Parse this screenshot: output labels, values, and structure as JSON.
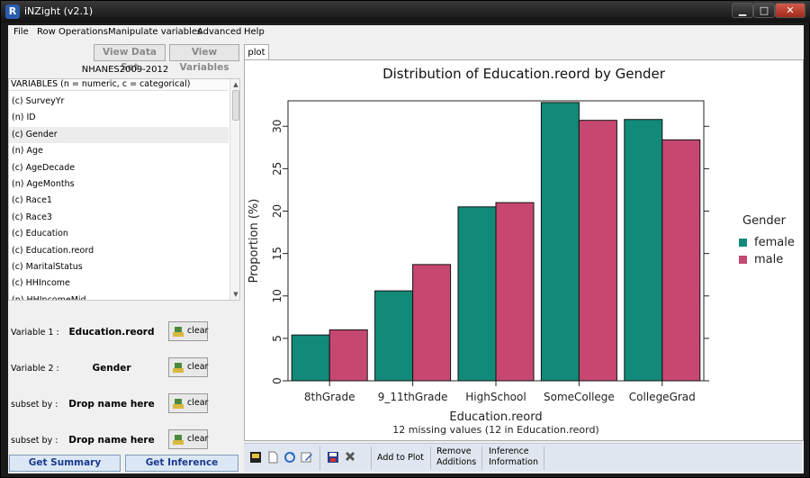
{
  "window": {
    "title": "iNZight (v2.1)",
    "icon": "R-logo-icon"
  },
  "menu": [
    "File",
    "Row Operations",
    "Manipulate variables",
    "Advanced",
    "Help"
  ],
  "toolbar_left": {
    "view_data": "View Data Set",
    "view_vars": "View Variables"
  },
  "dataset": {
    "name": "NHANES2009-2012"
  },
  "variables": {
    "header": "VARIABLES (n = numeric, c = categorical)",
    "items": [
      "(c) SurveyYr",
      "(n) ID",
      "(c) Gender",
      "(n) Age",
      "(c) AgeDecade",
      "(n) AgeMonths",
      "(c) Race1",
      "(c) Race3",
      "(c) Education",
      "(c) Education.reord",
      "(c) MaritalStatus",
      "(c) HHIncome",
      "(n) HHIncomeMid"
    ],
    "selected_index": 2
  },
  "slots": [
    {
      "label": "Variable 1 :",
      "value": "Education.reord",
      "clear": "clear"
    },
    {
      "label": "Variable 2 :",
      "value": "Gender",
      "clear": "clear"
    },
    {
      "label": "subset by :",
      "value": "Drop name here",
      "clear": "clear"
    },
    {
      "label": "subset by :",
      "value": "Drop name here",
      "clear": "clear"
    }
  ],
  "buttons": {
    "summary": "Get Summary",
    "inference": "Get Inference"
  },
  "tabs": {
    "plot": "plot"
  },
  "plot_toolbar": {
    "add_to_plot": "Add to Plot",
    "remove_1": "Remove",
    "remove_2": "Additions",
    "inference_1": "Inference",
    "inference_2": "Information"
  },
  "chart_data": {
    "type": "bar",
    "title": "Distribution of Education.reord by Gender",
    "xlabel": "Education.reord",
    "ylabel": "Proportion (%)",
    "note": "12 missing values (12 in Education.reord)",
    "categories": [
      "8thGrade",
      "9_11thGrade",
      "HighSchool",
      "SomeCollege",
      "CollegeGrad"
    ],
    "series": [
      {
        "name": "female",
        "values": [
          5.4,
          10.6,
          20.5,
          32.8,
          30.8
        ],
        "color": "#128A7A"
      },
      {
        "name": "male",
        "values": [
          6.0,
          13.7,
          21.0,
          30.7,
          28.4
        ],
        "color": "#C64870"
      }
    ],
    "ylim": [
      0,
      33
    ],
    "yticks": [
      0,
      5,
      10,
      15,
      20,
      25,
      30
    ],
    "legend": {
      "title": "Gender",
      "placement": "right"
    },
    "grid": false
  }
}
